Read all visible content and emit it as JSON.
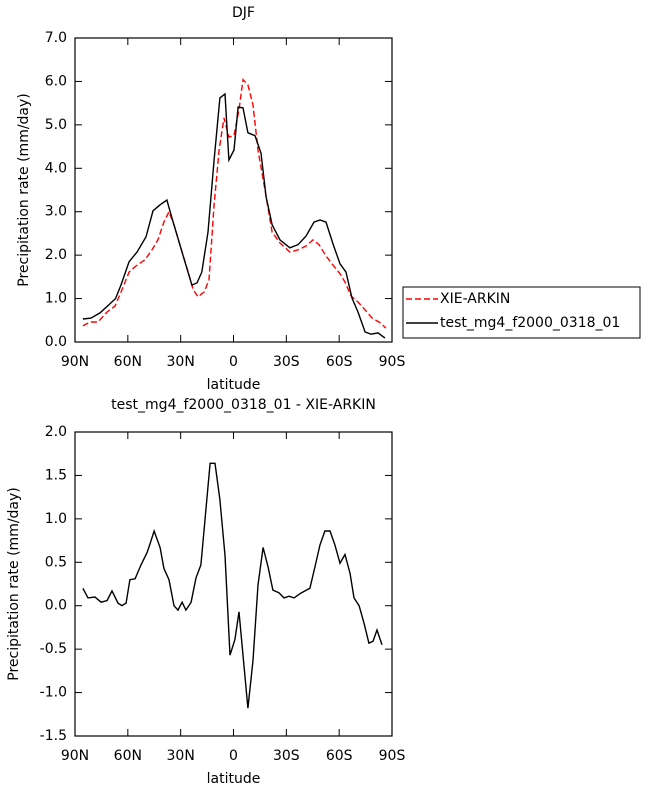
{
  "chart_data": [
    {
      "type": "line",
      "title": "DJF",
      "xlabel": "latitude",
      "ylabel": "Precipitation rate (mm/day)",
      "xlim": [
        90,
        -90
      ],
      "ylim": [
        0,
        7
      ],
      "xticks": [
        {
          "value": 90,
          "label": "90N"
        },
        {
          "value": 60,
          "label": "60N"
        },
        {
          "value": 30,
          "label": "30N"
        },
        0,
        {
          "value": -30,
          "label": "30S"
        },
        {
          "value": -60,
          "label": "60S"
        },
        {
          "value": -90,
          "label": "90S"
        }
      ],
      "yticks": [
        {
          "value": 0,
          "label": "0.0"
        },
        {
          "value": 1,
          "label": "1.0"
        },
        {
          "value": 2,
          "label": "2.0"
        },
        {
          "value": 3,
          "label": "3.0"
        },
        {
          "value": 4,
          "label": "4.0"
        },
        {
          "value": 5,
          "label": "5.0"
        },
        {
          "value": 6,
          "label": "6.0"
        },
        {
          "value": 7,
          "label": "7.0"
        }
      ],
      "legend": "right",
      "series": [
        {
          "name": "XIE-ARKIN",
          "color": "#ff0000",
          "linestyle": "dashed",
          "x": [
            85.5,
            81.5,
            76.9,
            71.8,
            67.3,
            63.9,
            59.3,
            55.4,
            50.3,
            46.3,
            42.9,
            39.5,
            36.6,
            33.8,
            30.4,
            26.4,
            23.0,
            20.2,
            16.7,
            13.9,
            11.0,
            8.2,
            5.4,
            2.6,
            -0.3,
            -3.1,
            -5.4,
            -8.2,
            -11.1,
            -13.9,
            -17.9,
            -21.9,
            -26.4,
            -32.0,
            -36.6,
            -41.2,
            -45.1,
            -48.6,
            -52.5,
            -56.5,
            -60.5,
            -63.3,
            -66.7,
            -70.7,
            -74.7,
            -78.7,
            -82.6,
            -86.6
          ],
          "values": [
            0.37,
            0.46,
            0.46,
            0.69,
            0.83,
            1.15,
            1.61,
            1.75,
            1.89,
            2.12,
            2.35,
            2.76,
            3.0,
            2.7,
            2.23,
            1.7,
            1.22,
            1.04,
            1.15,
            1.43,
            3.16,
            4.42,
            5.16,
            4.72,
            4.75,
            5.35,
            6.04,
            5.92,
            5.46,
            4.42,
            3.5,
            2.53,
            2.28,
            2.07,
            2.12,
            2.21,
            2.35,
            2.24,
            1.98,
            1.77,
            1.57,
            1.38,
            1.06,
            0.92,
            0.74,
            0.55,
            0.46,
            0.32
          ]
        },
        {
          "name": "test_mg4_f2000_0318_01",
          "color": "#000000",
          "linestyle": "solid",
          "x": [
            85.5,
            80.9,
            75.8,
            71.0,
            67.0,
            64.0,
            59.3,
            54.8,
            49.7,
            45.7,
            41.7,
            37.8,
            35.0,
            30.4,
            27.0,
            23.6,
            20.7,
            18.0,
            14.5,
            11.0,
            7.7,
            4.8,
            2.6,
            -0.3,
            -2.6,
            -5.4,
            -8.2,
            -12.2,
            -15.6,
            -18.5,
            -21.9,
            -26.4,
            -32.0,
            -36.6,
            -41.2,
            -45.7,
            -49.1,
            -52.5,
            -56.5,
            -60.5,
            -63.9,
            -67.3,
            -70.7,
            -74.7,
            -78.1,
            -82.1,
            -86.0
          ],
          "values": [
            0.53,
            0.55,
            0.67,
            0.85,
            1.0,
            1.3,
            1.85,
            2.07,
            2.42,
            3.02,
            3.16,
            3.27,
            2.86,
            2.23,
            1.77,
            1.31,
            1.36,
            1.61,
            2.53,
            4.19,
            5.62,
            5.71,
            4.19,
            4.42,
            5.41,
            5.39,
            4.82,
            4.75,
            4.35,
            3.34,
            2.7,
            2.35,
            2.17,
            2.24,
            2.44,
            2.76,
            2.81,
            2.76,
            2.26,
            1.8,
            1.61,
            1.01,
            0.69,
            0.23,
            0.18,
            0.21,
            0.09
          ]
        }
      ]
    },
    {
      "type": "line",
      "title": "test_mg4_f2000_0318_01 - XIE-ARKIN",
      "xlabel": "latitude",
      "ylabel": "Precipitation rate (mm/day)",
      "xlim": [
        90,
        -90
      ],
      "ylim": [
        -1.5,
        2
      ],
      "xticks": [
        {
          "value": 90,
          "label": "90N"
        },
        {
          "value": 60,
          "label": "60N"
        },
        {
          "value": 30,
          "label": "30N"
        },
        0,
        {
          "value": -30,
          "label": "30S"
        },
        {
          "value": -60,
          "label": "60S"
        },
        {
          "value": -90,
          "label": "90S"
        }
      ],
      "yticks": [
        {
          "value": -1.5,
          "label": "-1.5"
        },
        {
          "value": -1,
          "label": "-1.0"
        },
        {
          "value": -0.5,
          "label": "-0.5"
        },
        {
          "value": 0,
          "label": "0.0"
        },
        0.5,
        {
          "value": 1,
          "label": "1.0"
        },
        1.5,
        {
          "value": 2,
          "label": "2.0"
        }
      ],
      "series": [
        {
          "color": "#000000",
          "linestyle": "solid",
          "x": [
            85.5,
            82.6,
            78.7,
            75.2,
            71.8,
            69.0,
            65.6,
            63.3,
            61.0,
            58.8,
            55.9,
            52.5,
            49.1,
            47.4,
            45.1,
            41.7,
            39.5,
            36.6,
            33.8,
            31.5,
            29.2,
            27.0,
            24.1,
            21.3,
            18.5,
            16.2,
            13.3,
            10.5,
            7.7,
            4.8,
            2.0,
            -0.8,
            -3.1,
            -5.4,
            -8.2,
            -11.1,
            -13.9,
            -16.8,
            -19.6,
            -22.4,
            -25.8,
            -28.7,
            -31.5,
            -34.4,
            -37.8,
            -40.6,
            -43.4,
            -46.3,
            -49.1,
            -51.9,
            -54.8,
            -57.6,
            -60.5,
            -63.3,
            -66.2,
            -68.4,
            -71.3,
            -74.1,
            -76.9,
            -79.2,
            -81.5,
            -84.3
          ],
          "values": [
            0.2,
            0.09,
            0.1,
            0.04,
            0.06,
            0.17,
            0.03,
            0.0,
            0.03,
            0.3,
            0.31,
            0.47,
            0.61,
            0.71,
            0.86,
            0.67,
            0.43,
            0.3,
            0.0,
            -0.05,
            0.04,
            -0.05,
            0.04,
            0.32,
            0.47,
            0.99,
            1.64,
            1.64,
            1.22,
            0.58,
            -0.57,
            -0.39,
            -0.07,
            -0.57,
            -1.18,
            -0.63,
            0.24,
            0.67,
            0.45,
            0.18,
            0.15,
            0.09,
            0.11,
            0.09,
            0.14,
            0.17,
            0.2,
            0.45,
            0.7,
            0.86,
            0.86,
            0.7,
            0.49,
            0.59,
            0.37,
            0.09,
            0.0,
            -0.2,
            -0.43,
            -0.41,
            -0.28,
            -0.45
          ]
        }
      ]
    }
  ]
}
